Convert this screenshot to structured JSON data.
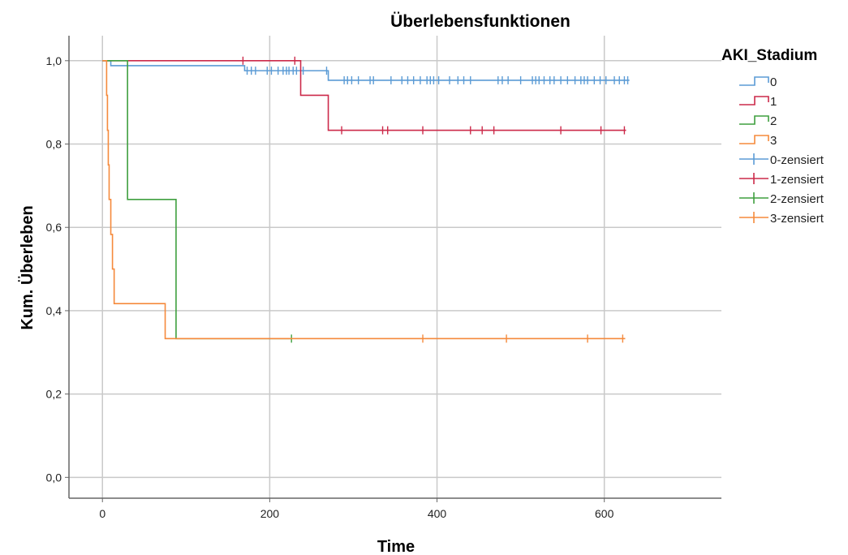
{
  "chart_data": {
    "type": "line",
    "title": "Überlebensfunktionen",
    "xlabel": "Time",
    "ylabel": "Kum. Überleben",
    "xlim": [
      -40,
      740
    ],
    "ylim": [
      -0.05,
      1.06
    ],
    "xticks": [
      0,
      200,
      400,
      600
    ],
    "xtick_labels": [
      "0",
      "200",
      "400",
      "600"
    ],
    "yticks": [
      0.0,
      0.2,
      0.4,
      0.6,
      0.8,
      1.0
    ],
    "ytick_labels": [
      "0,0",
      "0,2",
      "0,4",
      "0,6",
      "0,8",
      "1,0"
    ],
    "grid": true,
    "legend": {
      "title": "AKI_Stadium",
      "placement": "right",
      "entries": [
        "0",
        "1",
        "2",
        "3",
        "0-zensiert",
        "1-zensiert",
        "2-zensiert",
        "3-zensiert"
      ]
    },
    "series": [
      {
        "name": "0",
        "color": "#5b9bd5",
        "steps": [
          [
            0,
            1.0
          ],
          [
            10,
            0.988
          ],
          [
            170,
            0.976
          ],
          [
            270,
            0.953
          ],
          [
            630,
            0.953
          ]
        ],
        "censored": [
          [
            173,
            0.976
          ],
          [
            178,
            0.976
          ],
          [
            183,
            0.976
          ],
          [
            197,
            0.976
          ],
          [
            202,
            0.976
          ],
          [
            210,
            0.976
          ],
          [
            216,
            0.976
          ],
          [
            220,
            0.976
          ],
          [
            223,
            0.976
          ],
          [
            228,
            0.976
          ],
          [
            232,
            0.976
          ],
          [
            240,
            0.976
          ],
          [
            268,
            0.976
          ],
          [
            289,
            0.953
          ],
          [
            293,
            0.953
          ],
          [
            298,
            0.953
          ],
          [
            306,
            0.953
          ],
          [
            320,
            0.953
          ],
          [
            324,
            0.953
          ],
          [
            345,
            0.953
          ],
          [
            358,
            0.953
          ],
          [
            365,
            0.953
          ],
          [
            372,
            0.953
          ],
          [
            380,
            0.953
          ],
          [
            388,
            0.953
          ],
          [
            392,
            0.953
          ],
          [
            396,
            0.953
          ],
          [
            402,
            0.953
          ],
          [
            415,
            0.953
          ],
          [
            425,
            0.953
          ],
          [
            432,
            0.953
          ],
          [
            440,
            0.953
          ],
          [
            473,
            0.953
          ],
          [
            478,
            0.953
          ],
          [
            485,
            0.953
          ],
          [
            500,
            0.953
          ],
          [
            514,
            0.953
          ],
          [
            518,
            0.953
          ],
          [
            522,
            0.953
          ],
          [
            528,
            0.953
          ],
          [
            535,
            0.953
          ],
          [
            540,
            0.953
          ],
          [
            548,
            0.953
          ],
          [
            556,
            0.953
          ],
          [
            565,
            0.953
          ],
          [
            572,
            0.953
          ],
          [
            576,
            0.953
          ],
          [
            580,
            0.953
          ],
          [
            588,
            0.953
          ],
          [
            595,
            0.953
          ],
          [
            602,
            0.953
          ],
          [
            612,
            0.953
          ],
          [
            618,
            0.953
          ],
          [
            624,
            0.953
          ],
          [
            628,
            0.953
          ]
        ]
      },
      {
        "name": "1",
        "color": "#cc2a4a",
        "steps": [
          [
            0,
            1.0
          ],
          [
            237,
            0.917
          ],
          [
            270,
            0.833
          ],
          [
            626,
            0.833
          ]
        ],
        "censored": [
          [
            168,
            1.0
          ],
          [
            230,
            1.0
          ],
          [
            286,
            0.833
          ],
          [
            335,
            0.833
          ],
          [
            341,
            0.833
          ],
          [
            383,
            0.833
          ],
          [
            440,
            0.833
          ],
          [
            454,
            0.833
          ],
          [
            468,
            0.833
          ],
          [
            548,
            0.833
          ],
          [
            596,
            0.833
          ],
          [
            624,
            0.833
          ]
        ]
      },
      {
        "name": "2",
        "color": "#3f9f3f",
        "steps": [
          [
            0,
            1.0
          ],
          [
            30,
            0.667
          ],
          [
            88,
            0.333
          ],
          [
            226,
            0.333
          ]
        ],
        "censored": [
          [
            226,
            0.333
          ]
        ]
      },
      {
        "name": "3",
        "color": "#f58a3c",
        "steps": [
          [
            0,
            1.0
          ],
          [
            5,
            0.917
          ],
          [
            6,
            0.833
          ],
          [
            7,
            0.75
          ],
          [
            8,
            0.667
          ],
          [
            10,
            0.583
          ],
          [
            12,
            0.5
          ],
          [
            14,
            0.417
          ],
          [
            75,
            0.333
          ],
          [
            625,
            0.333
          ]
        ],
        "censored": [
          [
            383,
            0.333
          ],
          [
            483,
            0.333
          ],
          [
            580,
            0.333
          ],
          [
            622,
            0.333
          ]
        ]
      }
    ]
  }
}
